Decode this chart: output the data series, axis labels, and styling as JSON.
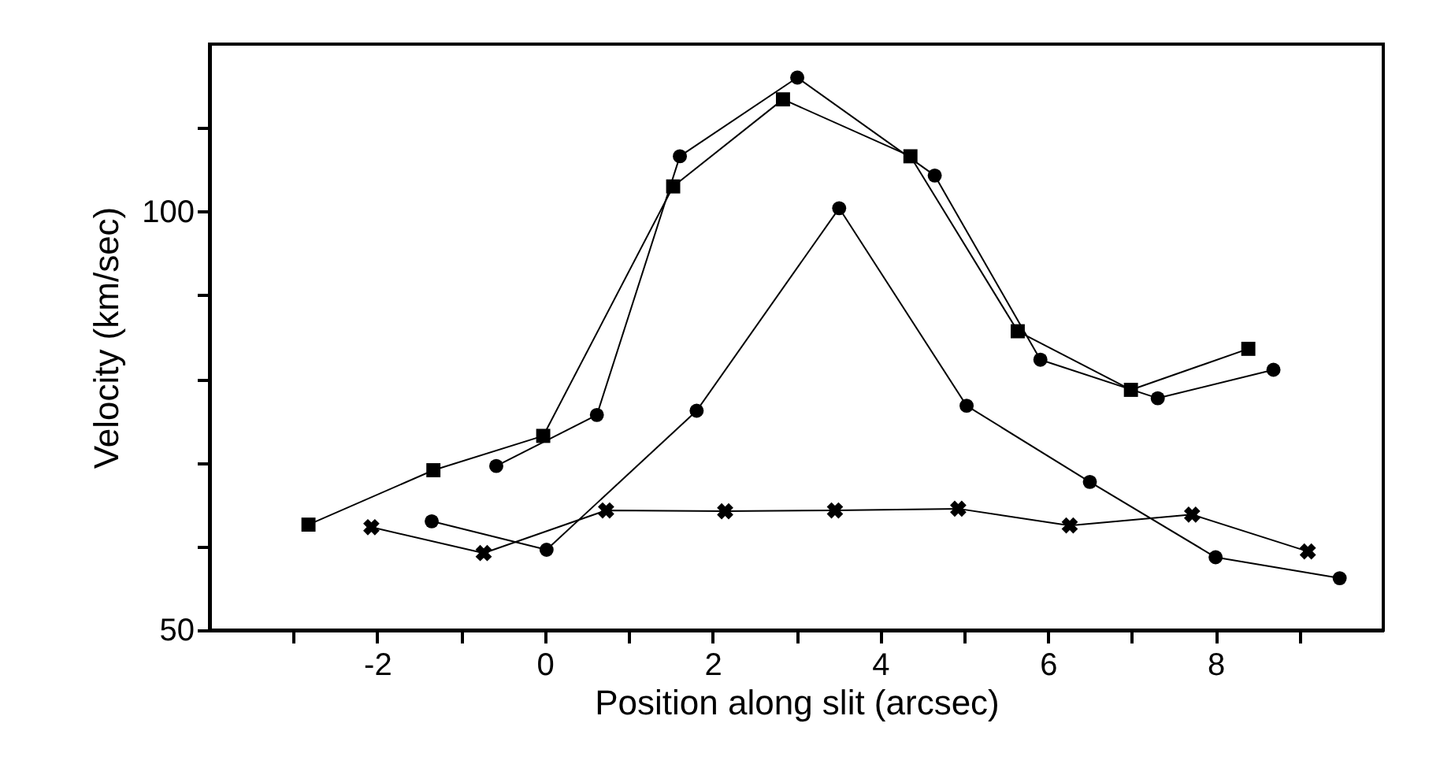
{
  "chart_data": {
    "type": "line",
    "xlabel": "Position along slit (arcsec)",
    "ylabel": "Velocity (km/sec)",
    "xlim": [
      -4,
      10
    ],
    "ylim": [
      50,
      120
    ],
    "xticks": [
      {
        "value": -3,
        "label": null
      },
      -2,
      {
        "value": -1,
        "label": null
      },
      0,
      {
        "value": 1,
        "label": null
      },
      2,
      {
        "value": 3,
        "label": null
      },
      4,
      {
        "value": 5,
        "label": null
      },
      6,
      {
        "value": 7,
        "label": null
      },
      8,
      {
        "value": 9,
        "label": null
      }
    ],
    "yticks": [
      50,
      {
        "value": 60,
        "label": null
      },
      {
        "value": 70,
        "label": null
      },
      {
        "value": 80,
        "label": null
      },
      {
        "value": 90,
        "label": null
      },
      100,
      {
        "value": 110,
        "label": null
      }
    ],
    "grid": false,
    "line_style": "solid",
    "series": [
      {
        "color": "#000000",
        "marker": "square",
        "x": [
          -2.82,
          -1.33,
          -0.02,
          1.53,
          2.84,
          4.36,
          5.64,
          6.99,
          8.39
        ],
        "values": [
          62.6,
          69.1,
          73.2,
          103.0,
          113.4,
          106.6,
          85.7,
          78.7,
          83.6
        ]
      },
      {
        "color": "#000000",
        "marker": "circle",
        "x": [
          -0.58,
          0.62,
          1.61,
          3.01,
          4.65,
          5.91,
          7.31,
          8.69
        ],
        "values": [
          69.6,
          75.7,
          106.6,
          116.0,
          104.3,
          82.3,
          77.7,
          81.1
        ]
      },
      {
        "color": "#000000",
        "marker": "circle",
        "x": [
          -1.35,
          0.02,
          1.81,
          3.51,
          5.03,
          6.5,
          8.0,
          9.48
        ],
        "values": [
          63.0,
          59.6,
          76.2,
          100.4,
          76.8,
          67.7,
          58.7,
          56.2
        ]
      },
      {
        "color": "#000000",
        "marker": "cross",
        "x": [
          -2.07,
          -0.73,
          0.73,
          2.15,
          3.46,
          4.93,
          6.26,
          7.72,
          9.1
        ],
        "values": [
          62.3,
          59.2,
          64.3,
          64.2,
          64.3,
          64.5,
          62.5,
          63.8,
          59.4
        ]
      }
    ]
  }
}
